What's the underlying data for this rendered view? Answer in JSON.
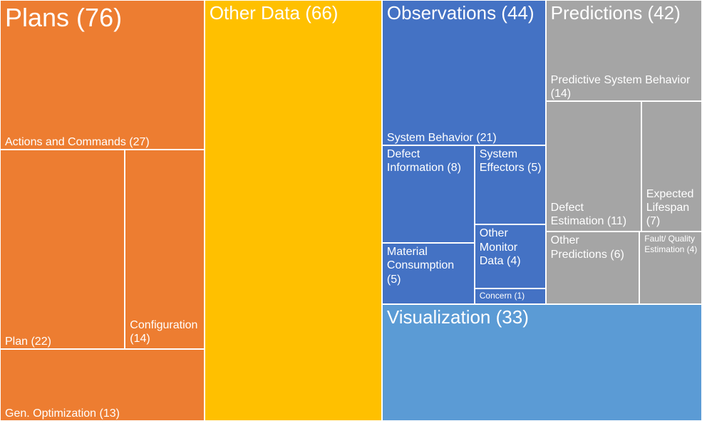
{
  "chart_data": {
    "type": "treemap",
    "nodes": [
      {
        "label": "Plans (76)",
        "value": 76,
        "color": "#ed7d31",
        "children": [
          {
            "label": "Actions and Commands (27)",
            "value": 27
          },
          {
            "label": "Plan (22)",
            "value": 22
          },
          {
            "label": "Configuration (14)",
            "value": 14
          },
          {
            "label": "Gen. Optimization (13)",
            "value": 13
          }
        ]
      },
      {
        "label": "Other Data (66)",
        "value": 66,
        "color": "#ffc000",
        "children": []
      },
      {
        "label": "Observations (44)",
        "value": 44,
        "color": "#4472c4",
        "children": [
          {
            "label": "System Behavior (21)",
            "value": 21
          },
          {
            "label": "Defect Information (8)",
            "value": 8
          },
          {
            "label": "System Effectors (5)",
            "value": 5
          },
          {
            "label": "Material Consumption (5)",
            "value": 5
          },
          {
            "label": "Other Monitor Data (4)",
            "value": 4
          },
          {
            "label": "Concern (1)",
            "value": 1
          }
        ]
      },
      {
        "label": "Predictions (42)",
        "value": 42,
        "color": "#a5a5a5",
        "children": [
          {
            "label": "Predictive System Behavior (14)",
            "value": 14
          },
          {
            "label": "Defect Estimation (11)",
            "value": 11
          },
          {
            "label": "Expected Lifespan (7)",
            "value": 7
          },
          {
            "label": "Other Predictions (6)",
            "value": 6
          },
          {
            "label": "Fault/ Quality Estimation (4)",
            "value": 4
          }
        ]
      },
      {
        "label": "Visualization (33)",
        "value": 33,
        "color": "#5b9bd5",
        "children": []
      }
    ]
  }
}
